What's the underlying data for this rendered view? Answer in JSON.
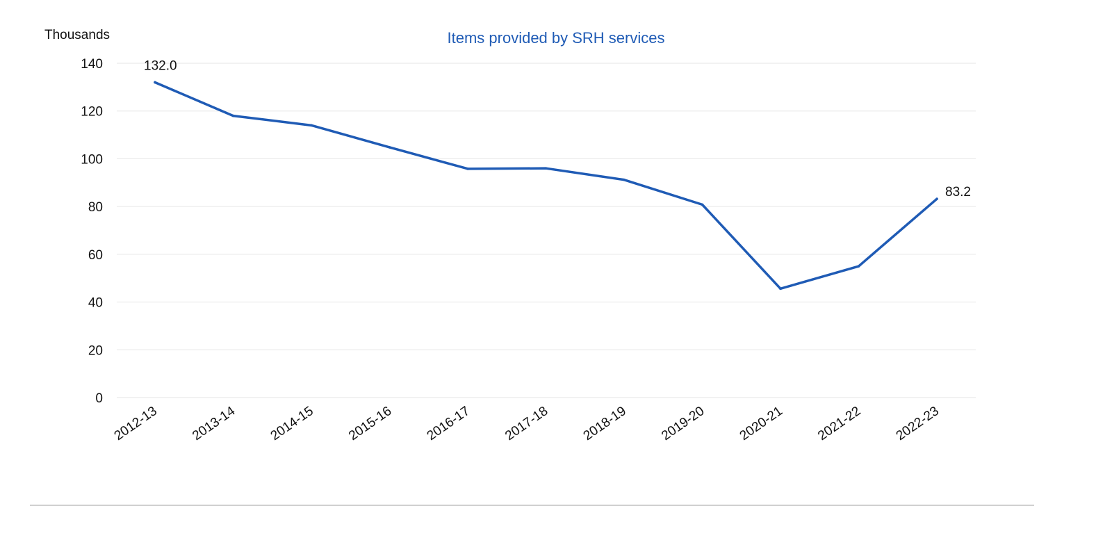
{
  "chart_data": {
    "type": "line",
    "title": "Items provided by SRH services",
    "ylabel": "Thousands",
    "xlabel": "",
    "categories": [
      "2012-13",
      "2013-14",
      "2014-15",
      "2015-16",
      "2016-17",
      "2017-18",
      "2018-19",
      "2019-20",
      "2020-21",
      "2021-22",
      "2022-23"
    ],
    "series": [
      {
        "values": [
          132.0,
          118.0,
          114.0,
          104.8,
          95.8,
          96.0,
          91.2,
          80.8,
          45.6,
          55.0,
          83.2
        ]
      }
    ],
    "data_labels": [
      {
        "index": 0,
        "text": "132.0"
      },
      {
        "index": 10,
        "text": "83.2"
      }
    ],
    "ylim": [
      0,
      140
    ],
    "yticks": [
      0,
      20,
      40,
      60,
      80,
      100,
      120,
      140
    ],
    "grid": true,
    "legend": "none",
    "colors": {
      "line": "#1f5bb5",
      "title": "#1f5bb5",
      "grid": "#e6e6e6",
      "text": "#111111",
      "rule": "#d0d0d0"
    }
  }
}
